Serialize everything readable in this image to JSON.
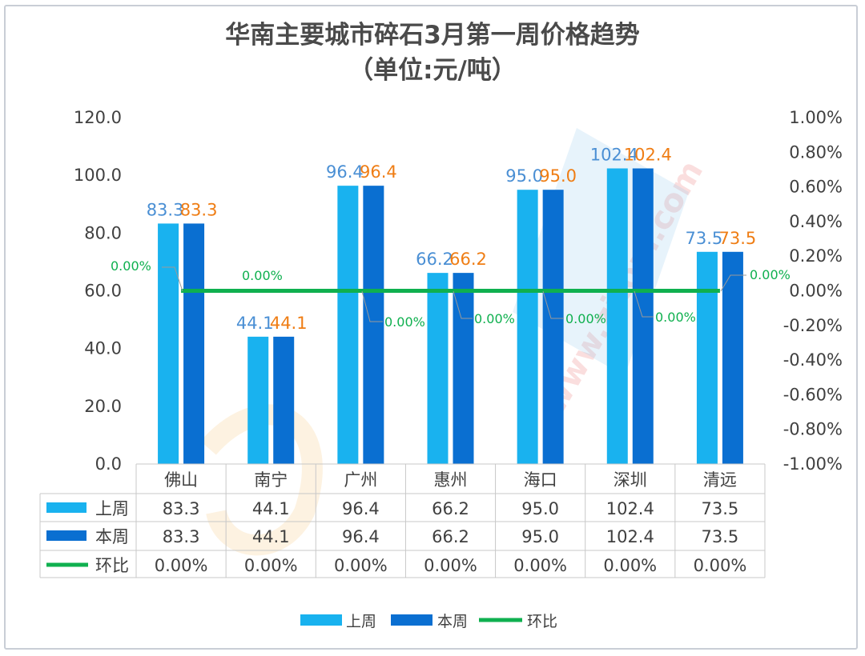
{
  "chart_data": {
    "type": "bar",
    "title": "华南主要城市碎石3月第一周价格趋势",
    "subtitle": "（单位:元/吨）",
    "categories": [
      "佛山",
      "南宁",
      "广州",
      "惠州",
      "海口",
      "深圳",
      "清远"
    ],
    "series": [
      {
        "name": "上周",
        "type": "bar",
        "axis": "left",
        "color": "#19b2ef",
        "values": [
          83.3,
          44.1,
          96.4,
          66.2,
          95.0,
          102.4,
          73.5
        ],
        "labels": [
          "83.3",
          "44.1",
          "96.4",
          "66.2",
          "95.0",
          "102.4",
          "73.5"
        ]
      },
      {
        "name": "本周",
        "type": "bar",
        "axis": "left",
        "color": "#0a6fd1",
        "values": [
          83.3,
          44.1,
          96.4,
          66.2,
          95.0,
          102.4,
          73.5
        ],
        "labels": [
          "83.3",
          "44.1",
          "96.4",
          "66.2",
          "95.0",
          "102.4",
          "73.5"
        ]
      },
      {
        "name": "环比",
        "type": "line",
        "axis": "right",
        "color": "#0fb04f",
        "values": [
          0,
          0,
          0,
          0,
          0,
          0,
          0
        ],
        "labels": [
          "0.00%",
          "0.00%",
          "0.00%",
          "0.00%",
          "0.00%",
          "0.00%",
          "0.00%"
        ]
      }
    ],
    "left_axis": {
      "ylim": [
        0,
        120
      ],
      "ticks": [
        0,
        20,
        40,
        60,
        80,
        100,
        120
      ],
      "tick_labels": [
        "0.0",
        "20.0",
        "40.0",
        "60.0",
        "80.0",
        "100.0",
        "120.0"
      ]
    },
    "right_axis": {
      "ylim": [
        -1,
        1
      ],
      "ticks": [
        -1,
        -0.8,
        -0.6,
        -0.4,
        -0.2,
        0,
        0.2,
        0.4,
        0.6,
        0.8,
        1
      ],
      "tick_labels": [
        "-1.00%",
        "-0.80%",
        "-0.60%",
        "-0.40%",
        "-0.20%",
        "0.00%",
        "0.20%",
        "0.40%",
        "0.60%",
        "0.80%",
        "1.00%"
      ]
    },
    "label_colors": {
      "prev": "#4a8fd4",
      "curr": "#ef7d14",
      "ratio": "#0fb04f"
    },
    "data_table": {
      "rows": [
        {
          "name": "上周",
          "cells": [
            "83.3",
            "44.1",
            "96.4",
            "66.2",
            "95.0",
            "102.4",
            "73.5"
          ]
        },
        {
          "name": "本周",
          "cells": [
            "83.3",
            "44.1",
            "96.4",
            "66.2",
            "95.0",
            "102.4",
            "73.5"
          ]
        },
        {
          "name": "环比",
          "cells": [
            "0.00%",
            "0.00%",
            "0.00%",
            "0.00%",
            "0.00%",
            "0.00%",
            "0.00%"
          ]
        }
      ]
    },
    "legend": {
      "position": "bottom",
      "items": [
        "上周",
        "本周",
        "环比"
      ]
    },
    "watermark": "www.zitom.com"
  }
}
